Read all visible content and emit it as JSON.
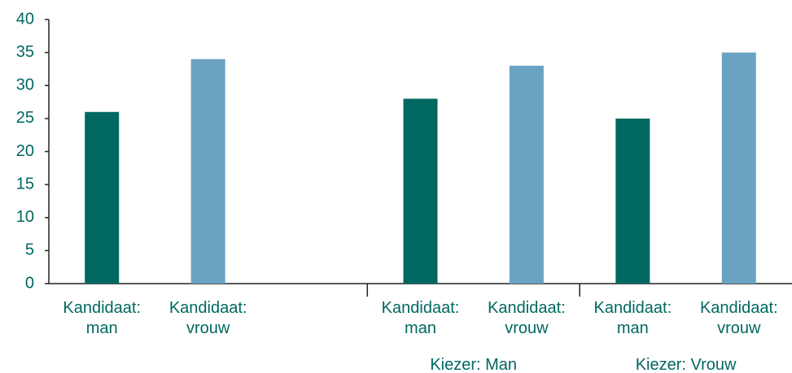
{
  "chart_data": {
    "type": "bar",
    "categories": [
      "Kandidaat: man",
      "Kandidaat: vrouw",
      null,
      "Kandidaat: man",
      "Kandidaat: vrouw",
      "Kandidaat: man",
      "Kandidaat: vrouw"
    ],
    "values": [
      26,
      34,
      null,
      28,
      33,
      25,
      35
    ],
    "bar_colors": [
      "#006860",
      "#6aa3c2",
      null,
      "#006860",
      "#6aa3c2",
      "#006860",
      "#6aa3c2"
    ],
    "groups": [
      {
        "label": "Kiezer: Man",
        "categories": [
          3,
          4
        ]
      },
      {
        "label": "Kiezer: Vrouw",
        "categories": [
          5,
          6
        ]
      }
    ],
    "ylim": [
      0,
      40
    ],
    "yticks": [
      0,
      5,
      10,
      15,
      20,
      25,
      30,
      35,
      40
    ],
    "grid": false
  }
}
